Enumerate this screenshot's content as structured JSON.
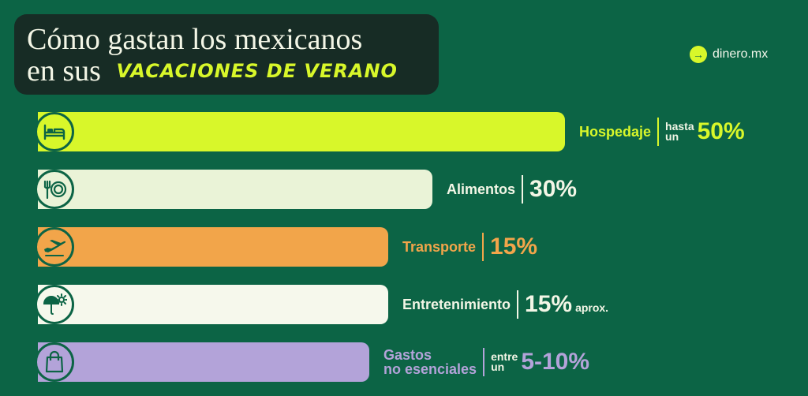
{
  "header": {
    "title_line1": "Cómo gastan los mexicanos",
    "title_line2_plain": "en sus",
    "title_line2_accent": "VACACIONES DE VERANO",
    "brand": "dinero.mx",
    "brand_icon": "arrow-right-icon"
  },
  "chart_data": {
    "type": "bar",
    "orientation": "horizontal",
    "categories": [
      "Hospedaje",
      "Alimentos",
      "Transporte",
      "Entretenimiento",
      "Gastos no esenciales"
    ],
    "values": [
      50,
      30,
      15,
      15,
      10
    ],
    "value_labels": [
      "50%",
      "30%",
      "15%",
      "15%",
      "5-10%"
    ],
    "prefixes": [
      "hasta un",
      "",
      "",
      "",
      "entre un"
    ],
    "suffixes": [
      "",
      "",
      "",
      "aprox.",
      ""
    ],
    "colors": [
      "#d8f72a",
      "#eaf3d7",
      "#f2a54a",
      "#f6f8ec",
      "#b3a3d9"
    ],
    "label_colors": [
      "#d8f72a",
      "#f3f6e6",
      "#f2a54a",
      "#f3f6e6",
      "#b3a3d9"
    ],
    "icons": [
      "bed-icon",
      "plate-icon",
      "airplane-icon",
      "umbrella-sun-icon",
      "shopping-bag-icon"
    ]
  }
}
